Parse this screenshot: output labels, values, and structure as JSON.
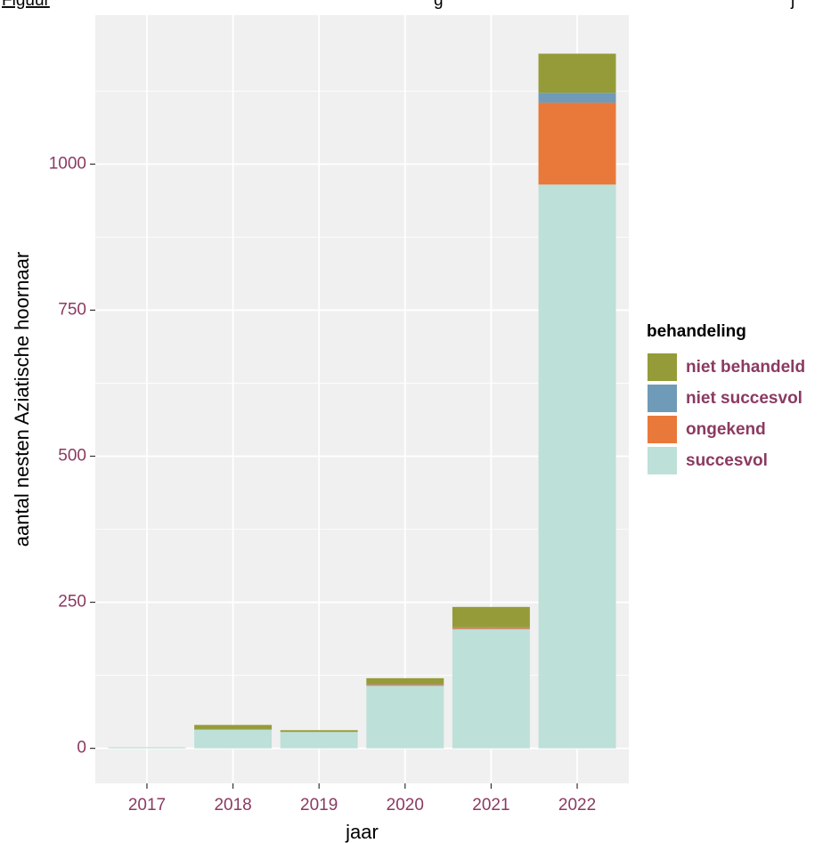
{
  "caption_fragments": [
    "Figuur",
    "g",
    "j"
  ],
  "chart_data": {
    "type": "bar",
    "stacked": true,
    "categories": [
      "2017",
      "2018",
      "2019",
      "2020",
      "2021",
      "2022"
    ],
    "series": [
      {
        "name": "succesvol",
        "color": "#bde0d9",
        "values": [
          2,
          32,
          28,
          107,
          204,
          965
        ]
      },
      {
        "name": "ongekend",
        "color": "#e8793a",
        "values": [
          0,
          0,
          0,
          2,
          2,
          140
        ]
      },
      {
        "name": "niet succesvol",
        "color": "#6f9bb8",
        "values": [
          0,
          1,
          0,
          1,
          1,
          17
        ]
      },
      {
        "name": "niet behandeld",
        "color": "#959b38",
        "values": [
          0,
          7,
          3,
          10,
          35,
          67
        ]
      }
    ],
    "legend_order": [
      "niet behandeld",
      "niet succesvol",
      "ongekend",
      "succesvol"
    ],
    "legend_title": "behandeling",
    "legend_position": "right",
    "xlabel": "jaar",
    "ylabel": "aantal nesten Aziatische hoornaar",
    "yticks": [
      0,
      250,
      500,
      750,
      1000
    ],
    "ylim": [
      -60,
      1255
    ],
    "grid": true,
    "panel_background": "#f0f0f0",
    "tick_label_color": "#8b3a62"
  }
}
